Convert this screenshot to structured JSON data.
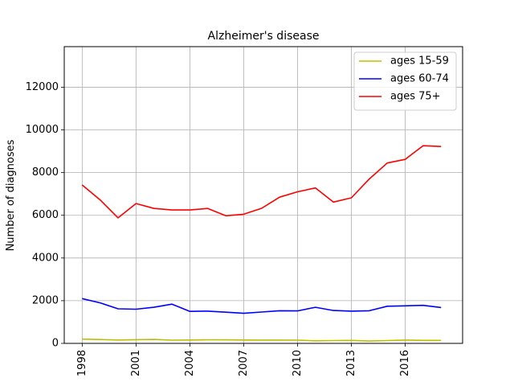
{
  "chart_data": {
    "type": "line",
    "title": "Alzheimer's disease",
    "xlabel": "",
    "ylabel": "Number of diagnoses",
    "x": [
      1998,
      1999,
      2000,
      2001,
      2002,
      2003,
      2004,
      2005,
      2006,
      2007,
      2008,
      2009,
      2010,
      2011,
      2012,
      2013,
      2014,
      2015,
      2016,
      2017,
      2018
    ],
    "xticks": [
      1998,
      2001,
      2004,
      2007,
      2010,
      2013,
      2016
    ],
    "yticks": [
      0,
      2000,
      4000,
      6000,
      8000,
      10000,
      12000
    ],
    "xlim": [
      1997,
      2019.2
    ],
    "ylim": [
      0,
      13900
    ],
    "grid": true,
    "legend_position": "top-right",
    "series": [
      {
        "name": "ages 15-59",
        "color": "#bfbf00",
        "values": [
          200,
          180,
          160,
          175,
          185,
          150,
          160,
          170,
          165,
          160,
          155,
          155,
          150,
          120,
          130,
          140,
          110,
          130,
          155,
          140,
          140
        ]
      },
      {
        "name": "ages 60-74",
        "color": "#0000ff",
        "values": [
          2100,
          1900,
          1620,
          1600,
          1690,
          1840,
          1500,
          1510,
          1460,
          1410,
          1470,
          1530,
          1520,
          1690,
          1540,
          1510,
          1530,
          1740,
          1760,
          1780,
          1680
        ]
      },
      {
        "name": "ages 75+",
        "color": "#ff0000",
        "values": [
          7420,
          6720,
          5880,
          6550,
          6320,
          6250,
          6250,
          6320,
          5980,
          6050,
          6330,
          6850,
          7100,
          7280,
          6620,
          6820,
          7700,
          8450,
          8620,
          9260,
          9220
        ]
      }
    ]
  }
}
